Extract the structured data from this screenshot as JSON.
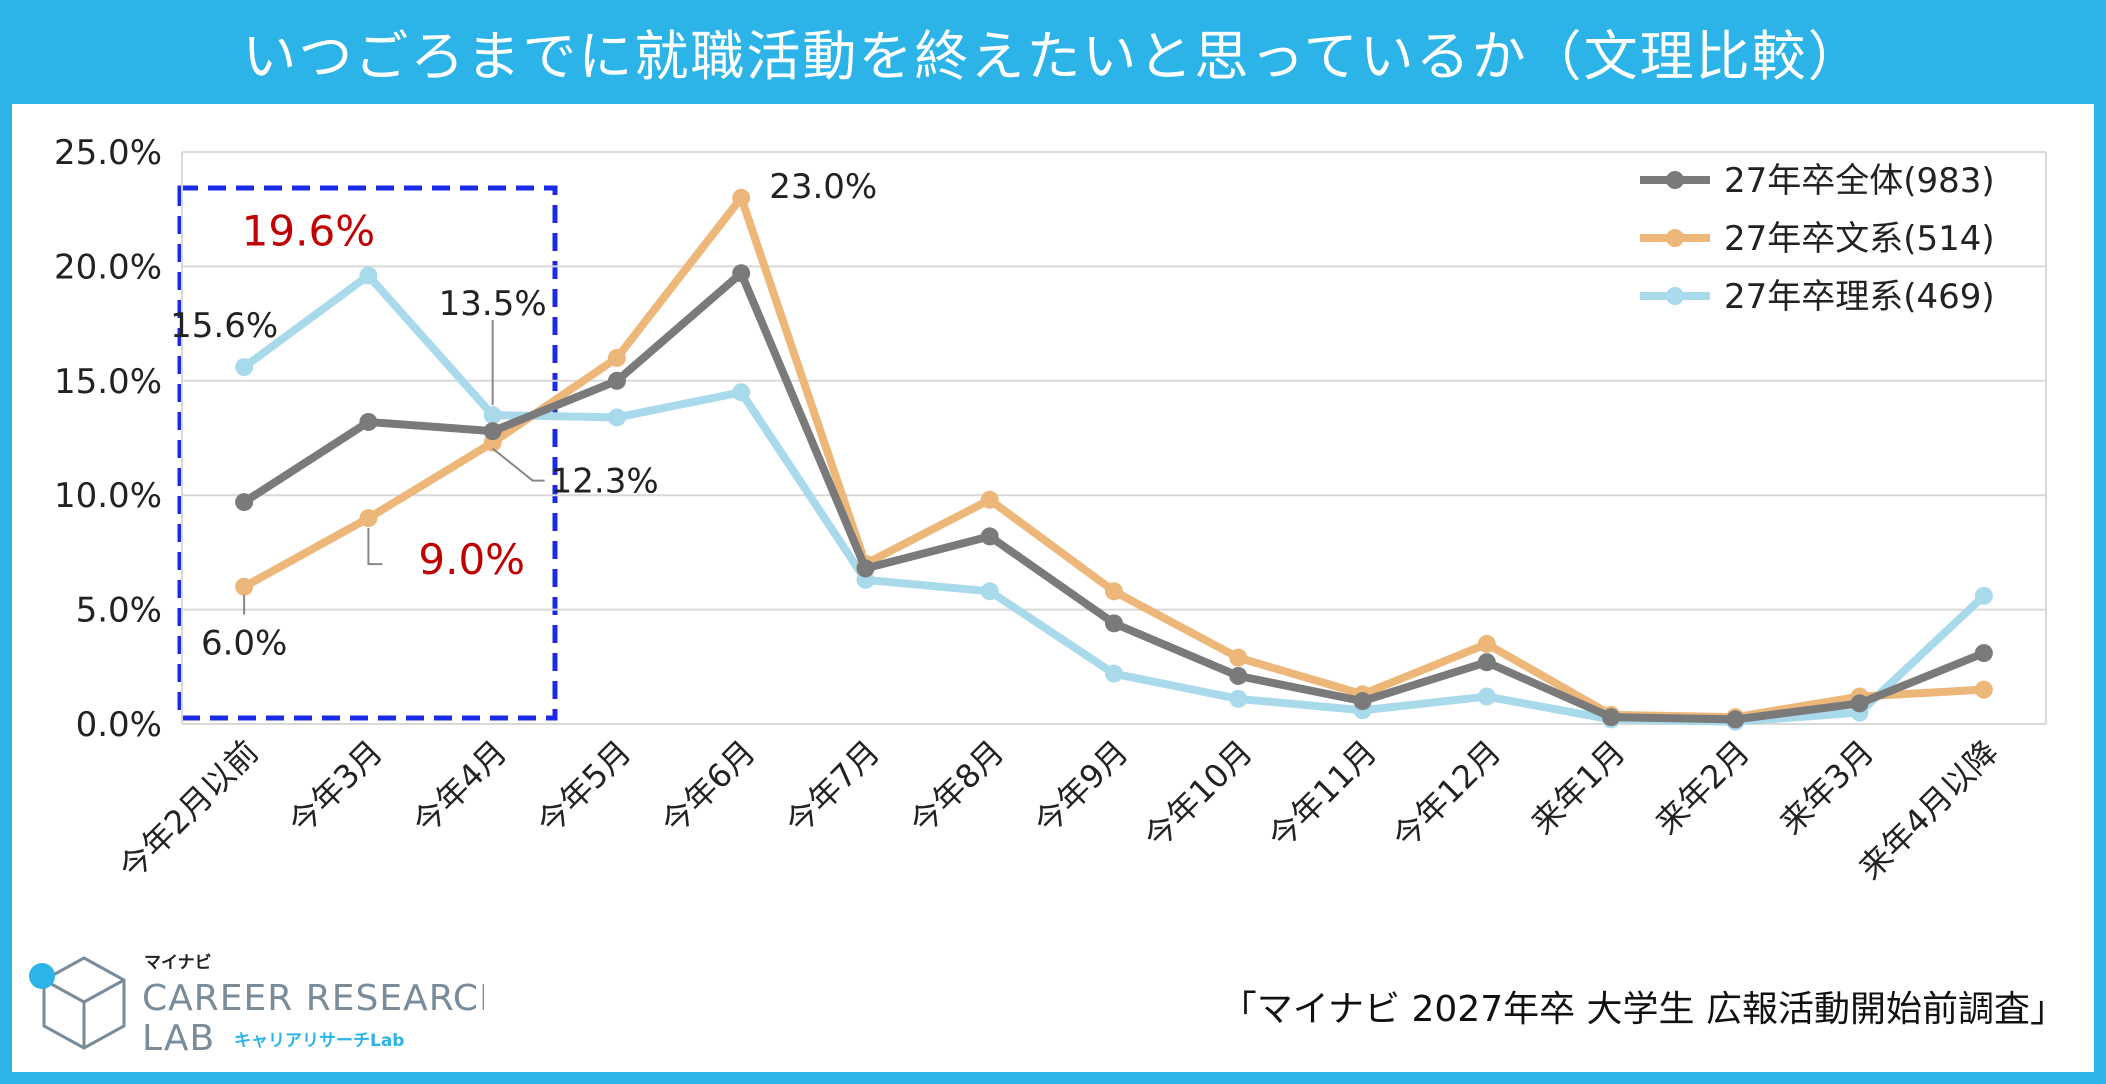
{
  "title": "いつごろまでに就職活動を終えたいと思っているか（文理比較）",
  "source": "「マイナビ 2027年卒 大学生 広報活動開始前調査」",
  "logo": {
    "brand_small": "マイナビ",
    "line1": "CAREER RESEARCH",
    "line2": "LAB",
    "sub": "キャリアリサーチLab"
  },
  "colors": {
    "background": "#2CB4E8",
    "all": "#7A7A7A",
    "bunkei": "#EDB779",
    "rikei": "#A9DAEB",
    "highlight_text": "#C00000",
    "highlight_box": "#1A2BE8"
  },
  "chart_data": {
    "type": "line",
    "categories": [
      "今年2月以前",
      "今年3月",
      "今年4月",
      "今年5月",
      "今年6月",
      "今年7月",
      "今年8月",
      "今年9月",
      "今年10月",
      "今年11月",
      "今年12月",
      "来年1月",
      "来年2月",
      "来年3月",
      "来年4月以降"
    ],
    "y_ticks": [
      "0.0%",
      "5.0%",
      "10.0%",
      "15.0%",
      "20.0%",
      "25.0%"
    ],
    "ylim": [
      0,
      25
    ],
    "grid": true,
    "legend": "top-right",
    "series": [
      {
        "key": "all",
        "name": "27年卒全体(983)",
        "values": [
          9.7,
          13.2,
          12.8,
          15.0,
          19.7,
          6.8,
          8.2,
          4.4,
          2.1,
          1.0,
          2.7,
          0.3,
          0.2,
          0.9,
          3.1
        ]
      },
      {
        "key": "bunkei",
        "name": "27年卒文系(514)",
        "values": [
          6.0,
          9.0,
          12.3,
          16.0,
          23.0,
          7.0,
          9.8,
          5.8,
          2.9,
          1.3,
          3.5,
          0.4,
          0.3,
          1.2,
          1.5
        ]
      },
      {
        "key": "rikei",
        "name": "27年卒理系(469)",
        "values": [
          15.6,
          19.6,
          13.5,
          13.4,
          14.5,
          6.3,
          5.8,
          2.2,
          1.1,
          0.6,
          1.2,
          0.2,
          0.1,
          0.5,
          5.6
        ]
      }
    ],
    "annotations": [
      {
        "text": "15.6%",
        "series": "rikei",
        "index": 0,
        "highlight": false
      },
      {
        "text": "19.6%",
        "series": "rikei",
        "index": 1,
        "highlight": true
      },
      {
        "text": "13.5%",
        "series": "rikei",
        "index": 2,
        "highlight": false
      },
      {
        "text": "6.0%",
        "series": "bunkei",
        "index": 0,
        "highlight": false
      },
      {
        "text": "9.0%",
        "series": "bunkei",
        "index": 1,
        "highlight": true
      },
      {
        "text": "12.3%",
        "series": "bunkei",
        "index": 2,
        "highlight": false
      },
      {
        "text": "23.0%",
        "series": "bunkei",
        "index": 4,
        "highlight": false
      }
    ]
  }
}
